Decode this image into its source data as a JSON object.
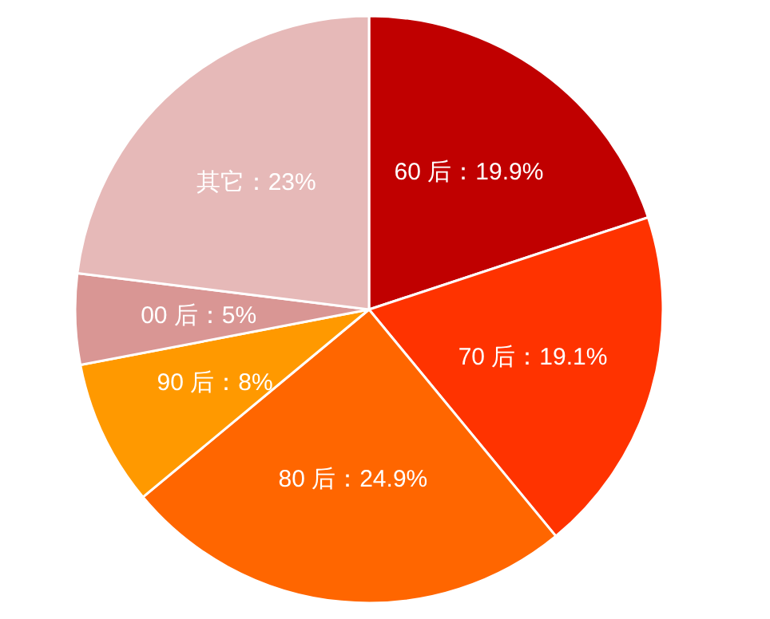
{
  "chart_data": {
    "type": "pie",
    "categories": [
      "60 后",
      "70 后",
      "80 后",
      "90 后",
      "00 后",
      "其它"
    ],
    "values": [
      19.9,
      19.1,
      24.9,
      8,
      5,
      23
    ],
    "colors": [
      "#c00000",
      "#ff3300",
      "#ff6600",
      "#ff9900",
      "#d99694",
      "#e6b9b8"
    ],
    "value_labels": [
      "：19.9%",
      "：19.1%",
      "：24.9%",
      "：8%",
      "：5%",
      "：23%"
    ]
  }
}
